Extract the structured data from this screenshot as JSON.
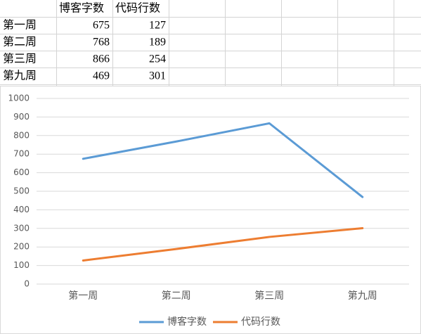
{
  "table": {
    "columns": [
      "博客字数",
      "代码行数"
    ],
    "rows": [
      [
        "第一周",
        675,
        127
      ],
      [
        "第二周",
        768,
        189
      ],
      [
        "第三周",
        866,
        254
      ],
      [
        "第九周",
        469,
        301
      ]
    ]
  },
  "chart_data": {
    "type": "line",
    "categories": [
      "第一周",
      "第二周",
      "第三周",
      "第九周"
    ],
    "series": [
      {
        "name": "博客字数",
        "color": "#5b9bd5",
        "values": [
          675,
          768,
          866,
          469
        ]
      },
      {
        "name": "代码行数",
        "color": "#ed7d31",
        "values": [
          127,
          189,
          254,
          301
        ]
      }
    ],
    "ylim": [
      0,
      1000
    ],
    "yticks": [
      0,
      100,
      200,
      300,
      400,
      500,
      600,
      700,
      800,
      900,
      1000
    ],
    "grid": true,
    "legend": "bottom"
  }
}
